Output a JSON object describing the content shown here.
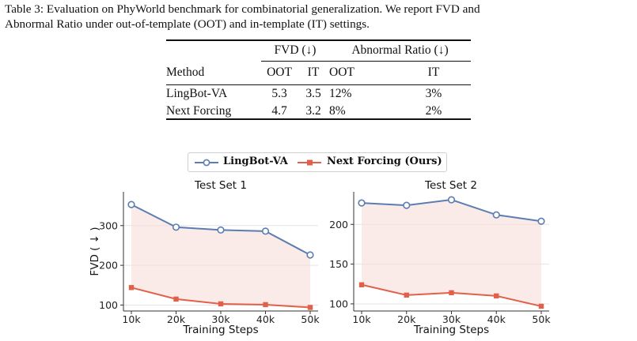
{
  "caption": {
    "line1": "Table 3: Evaluation on PhyWorld benchmark for combinatorial generalization. We report FVD and",
    "line2": "Abnormal Ratio under out-of-template (OOT) and in-template (IT) settings."
  },
  "table": {
    "group_fvd": "FVD (↓)",
    "group_abnormal": "Abnormal Ratio (↓)",
    "col_method": "Method",
    "col_oot": "OOT",
    "col_it": "IT",
    "rows": [
      {
        "method": "LingBot-VA",
        "fvd_oot": "5.3",
        "fvd_it": "3.5",
        "ab_oot": "12%",
        "ab_it": "3%"
      },
      {
        "method": "Next Forcing",
        "fvd_oot": "4.7",
        "fvd_it": "3.2",
        "ab_oot": "8%",
        "ab_it": "2%"
      }
    ]
  },
  "legend": {
    "series1": "LingBot-VA",
    "series2": "Next Forcing (Ours)"
  },
  "colors": {
    "series1": "#5b7db1",
    "series2": "#e0604a",
    "fill": "#f6dcd8"
  },
  "chart_data": [
    {
      "type": "line",
      "title": "Test Set 1",
      "xlabel": "Training Steps",
      "ylabel": "FVD ( ↓ )",
      "categories": [
        "10k",
        "20k",
        "30k",
        "40k",
        "50k"
      ],
      "ylim": [
        85,
        385
      ],
      "yticks": [
        100,
        200,
        300
      ],
      "grid": true,
      "series": [
        {
          "name": "LingBot-VA",
          "values": [
            353,
            296,
            289,
            286,
            226
          ]
        },
        {
          "name": "Next Forcing (Ours)",
          "values": [
            144,
            115,
            103,
            101,
            94
          ]
        }
      ]
    },
    {
      "type": "line",
      "title": "Test Set 2",
      "xlabel": "Training Steps",
      "ylabel": "",
      "categories": [
        "10k",
        "20k",
        "30k",
        "40k",
        "50k"
      ],
      "ylim": [
        91,
        241
      ],
      "yticks": [
        100,
        150,
        200
      ],
      "grid": true,
      "series": [
        {
          "name": "LingBot-VA",
          "values": [
            227,
            224,
            231,
            212,
            204
          ]
        },
        {
          "name": "Next Forcing (Ours)",
          "values": [
            124,
            111,
            114,
            110,
            97
          ]
        }
      ]
    }
  ]
}
